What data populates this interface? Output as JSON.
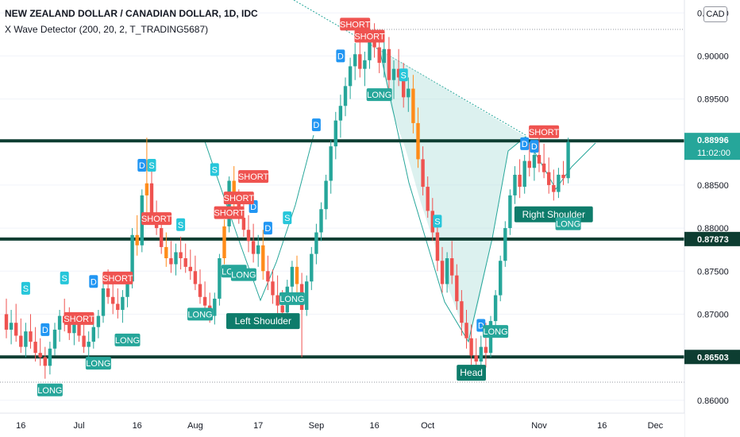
{
  "header": {
    "title": "NEW ZEALAND DOLLAR / CANADIAN DOLLAR, 1D, IDC",
    "indicator": "X Wave Detector (200, 20, 2, T_TRADING5687)",
    "currency": "CAD"
  },
  "colors": {
    "up": "#26a69a",
    "down": "#ef5350",
    "short": "#ef5350",
    "long": "#26a69a",
    "signal_d": "#2196f3",
    "signal_s": "#26c6da",
    "level_line": "#0d3d31",
    "orange": "#ff8c1a",
    "pattern_fill": "#b2dfdb"
  },
  "chart_data": {
    "type": "candlestick",
    "symbol": "NZDCAD",
    "timeframe": "1D",
    "x_ticks": [
      "16",
      "Jul",
      "16",
      "Aug",
      "17",
      "Sep",
      "16",
      "Oct",
      "Nov",
      "16",
      "Dec"
    ],
    "y_ticks": [
      "0.90500",
      "0.90000",
      "0.89500",
      "0.88500",
      "0.88000",
      "0.87500",
      "0.87000",
      "0.86000"
    ],
    "ylim": [
      0.8585,
      0.9065
    ],
    "levels": [
      {
        "label": "0.89014",
        "value": 0.89014
      },
      {
        "label": "0.87873",
        "value": 0.87873
      },
      {
        "label": "0.86503",
        "value": 0.86503
      }
    ],
    "last_price": {
      "label": "0.88996",
      "value": 0.88996,
      "countdown": "11:02:00"
    },
    "candles": [
      [
        0.87,
        0.8718,
        0.8672,
        0.8682
      ],
      [
        0.8682,
        0.8705,
        0.8665,
        0.869
      ],
      [
        0.869,
        0.8712,
        0.8668,
        0.8675
      ],
      [
        0.8675,
        0.8695,
        0.8655,
        0.8662
      ],
      [
        0.8662,
        0.869,
        0.865,
        0.868
      ],
      [
        0.868,
        0.87,
        0.866,
        0.8668
      ],
      [
        0.8668,
        0.8685,
        0.8645,
        0.8655
      ],
      [
        0.8655,
        0.8672,
        0.864,
        0.865
      ],
      [
        0.865,
        0.8662,
        0.8625,
        0.864
      ],
      [
        0.864,
        0.8668,
        0.863,
        0.866
      ],
      [
        0.866,
        0.869,
        0.8652,
        0.8682
      ],
      [
        0.8682,
        0.8705,
        0.8668,
        0.8698
      ],
      [
        0.8698,
        0.8718,
        0.868,
        0.869
      ],
      [
        0.869,
        0.8708,
        0.867,
        0.8678
      ],
      [
        0.8678,
        0.87,
        0.8664,
        0.8688
      ],
      [
        0.8688,
        0.8702,
        0.8668,
        0.8675
      ],
      [
        0.8675,
        0.869,
        0.8655,
        0.8662
      ],
      [
        0.8662,
        0.868,
        0.8648,
        0.8668
      ],
      [
        0.8668,
        0.8692,
        0.866,
        0.8685
      ],
      [
        0.8685,
        0.8705,
        0.8672,
        0.8698
      ],
      [
        0.8698,
        0.8738,
        0.869,
        0.873
      ],
      [
        0.873,
        0.8752,
        0.8712,
        0.872
      ],
      [
        0.872,
        0.8742,
        0.87,
        0.8712
      ],
      [
        0.8712,
        0.873,
        0.8695,
        0.8705
      ],
      [
        0.8705,
        0.8728,
        0.869,
        0.872
      ],
      [
        0.872,
        0.8748,
        0.8708,
        0.8738
      ],
      [
        0.8738,
        0.88,
        0.873,
        0.8792
      ],
      [
        0.8792,
        0.8815,
        0.8768,
        0.878
      ],
      [
        0.878,
        0.8845,
        0.8772,
        0.8838
      ],
      [
        0.8838,
        0.8905,
        0.8815,
        0.8852
      ],
      [
        0.8852,
        0.8868,
        0.881,
        0.8818
      ],
      [
        0.8818,
        0.8832,
        0.8792,
        0.88
      ],
      [
        0.88,
        0.8812,
        0.877,
        0.8778
      ],
      [
        0.8778,
        0.8795,
        0.8755,
        0.8765
      ],
      [
        0.8765,
        0.8785,
        0.8748,
        0.8758
      ],
      [
        0.8758,
        0.8782,
        0.8745,
        0.8772
      ],
      [
        0.8772,
        0.879,
        0.8752,
        0.8765
      ],
      [
        0.8765,
        0.8782,
        0.8748,
        0.8755
      ],
      [
        0.8755,
        0.8775,
        0.874,
        0.875
      ],
      [
        0.875,
        0.8768,
        0.8728,
        0.8735
      ],
      [
        0.8735,
        0.8752,
        0.8712,
        0.872
      ],
      [
        0.872,
        0.8738,
        0.8698,
        0.871
      ],
      [
        0.871,
        0.8725,
        0.869,
        0.8698
      ],
      [
        0.8698,
        0.8725,
        0.8688,
        0.8718
      ],
      [
        0.8718,
        0.877,
        0.871,
        0.8765
      ],
      [
        0.8765,
        0.881,
        0.8758,
        0.8802
      ],
      [
        0.8802,
        0.886,
        0.8795,
        0.8855
      ],
      [
        0.8855,
        0.8872,
        0.8825,
        0.8832
      ],
      [
        0.8832,
        0.8845,
        0.8805,
        0.8812
      ],
      [
        0.8812,
        0.8828,
        0.879,
        0.8798
      ],
      [
        0.8798,
        0.8815,
        0.8772,
        0.8785
      ],
      [
        0.8785,
        0.8805,
        0.876,
        0.877
      ],
      [
        0.877,
        0.8792,
        0.8755,
        0.878
      ],
      [
        0.878,
        0.8798,
        0.874,
        0.875
      ],
      [
        0.875,
        0.8768,
        0.8728,
        0.8738
      ],
      [
        0.8738,
        0.8752,
        0.8712,
        0.8722
      ],
      [
        0.8722,
        0.8745,
        0.87,
        0.871
      ],
      [
        0.871,
        0.8728,
        0.869,
        0.8702
      ],
      [
        0.8702,
        0.874,
        0.869,
        0.8732
      ],
      [
        0.8732,
        0.8762,
        0.8718,
        0.8755
      ],
      [
        0.8755,
        0.8768,
        0.872,
        0.8735
      ],
      [
        0.8735,
        0.8748,
        0.865,
        0.8705
      ],
      [
        0.8705,
        0.8745,
        0.8698,
        0.8738
      ],
      [
        0.8738,
        0.8778,
        0.8728,
        0.877
      ],
      [
        0.877,
        0.8805,
        0.8758,
        0.8795
      ],
      [
        0.8795,
        0.883,
        0.8785,
        0.8822
      ],
      [
        0.8822,
        0.8862,
        0.881,
        0.8855
      ],
      [
        0.8855,
        0.8902,
        0.884,
        0.8895
      ],
      [
        0.8895,
        0.8935,
        0.888,
        0.8925
      ],
      [
        0.8925,
        0.8955,
        0.8905,
        0.8942
      ],
      [
        0.8942,
        0.8975,
        0.893,
        0.8965
      ],
      [
        0.8965,
        0.8998,
        0.895,
        0.8988
      ],
      [
        0.8988,
        0.9015,
        0.8972,
        0.9002
      ],
      [
        0.9002,
        0.902,
        0.8975,
        0.8985
      ],
      [
        0.8985,
        0.9005,
        0.8965,
        0.8995
      ],
      [
        0.8995,
        0.903,
        0.8985,
        0.9022
      ],
      [
        0.9022,
        0.9038,
        0.8998,
        0.901
      ],
      [
        0.901,
        0.9025,
        0.898,
        0.8992
      ],
      [
        0.8992,
        0.9018,
        0.8975,
        0.9008
      ],
      [
        0.9008,
        0.9022,
        0.896,
        0.8972
      ],
      [
        0.8972,
        0.8995,
        0.895,
        0.8985
      ],
      [
        0.8985,
        0.9008,
        0.8965,
        0.8975
      ],
      [
        0.8975,
        0.8992,
        0.894,
        0.8952
      ],
      [
        0.8952,
        0.8975,
        0.8935,
        0.8962
      ],
      [
        0.8962,
        0.8978,
        0.891,
        0.8922
      ],
      [
        0.8922,
        0.894,
        0.887,
        0.888
      ],
      [
        0.888,
        0.8895,
        0.8838,
        0.8848
      ],
      [
        0.8848,
        0.886,
        0.8812,
        0.882
      ],
      [
        0.882,
        0.8835,
        0.8785,
        0.8795
      ],
      [
        0.8795,
        0.881,
        0.875,
        0.8762
      ],
      [
        0.8762,
        0.8778,
        0.8725,
        0.8735
      ],
      [
        0.8735,
        0.8772,
        0.8725,
        0.8765
      ],
      [
        0.8765,
        0.8785,
        0.8735,
        0.8745
      ],
      [
        0.8745,
        0.8758,
        0.8705,
        0.8715
      ],
      [
        0.8715,
        0.8728,
        0.8675,
        0.869
      ],
      [
        0.869,
        0.8705,
        0.866,
        0.8672
      ],
      [
        0.8672,
        0.8688,
        0.864,
        0.8652
      ],
      [
        0.8652,
        0.8672,
        0.8635,
        0.8645
      ],
      [
        0.8645,
        0.8675,
        0.8625,
        0.8662
      ],
      [
        0.8662,
        0.869,
        0.8638,
        0.8655
      ],
      [
        0.8655,
        0.8698,
        0.865,
        0.8692
      ],
      [
        0.8692,
        0.8728,
        0.8685,
        0.8722
      ],
      [
        0.8722,
        0.8768,
        0.8715,
        0.8762
      ],
      [
        0.8762,
        0.8808,
        0.8755,
        0.88
      ],
      [
        0.88,
        0.8845,
        0.8792,
        0.8838
      ],
      [
        0.8838,
        0.8872,
        0.8828,
        0.8862
      ],
      [
        0.8862,
        0.888,
        0.8835,
        0.8848
      ],
      [
        0.8848,
        0.8885,
        0.884,
        0.8878
      ],
      [
        0.8878,
        0.8898,
        0.886,
        0.887
      ],
      [
        0.887,
        0.8892,
        0.8855,
        0.8885
      ],
      [
        0.8885,
        0.8905,
        0.8865,
        0.8875
      ],
      [
        0.8875,
        0.8898,
        0.8858,
        0.8865
      ],
      [
        0.8865,
        0.8882,
        0.884,
        0.885
      ],
      [
        0.885,
        0.8868,
        0.8832,
        0.8842
      ],
      [
        0.8842,
        0.887,
        0.8835,
        0.8862
      ],
      [
        0.8862,
        0.8878,
        0.885,
        0.8858
      ],
      [
        0.8858,
        0.8905,
        0.8852,
        0.89
      ]
    ],
    "signals": [
      {
        "text": "SHORT",
        "kind": "short",
        "index": 72,
        "price": 0.9037
      },
      {
        "text": "SHORT",
        "kind": "short",
        "index": 75,
        "price": 0.9023
      },
      {
        "text": "D",
        "kind": "d",
        "index": 69,
        "price": 0.9
      },
      {
        "text": "D",
        "kind": "d",
        "index": 64,
        "price": 0.892
      },
      {
        "text": "S",
        "kind": "s",
        "index": 82,
        "price": 0.8978
      },
      {
        "text": "LONG",
        "kind": "long",
        "index": 77,
        "price": 0.8955
      },
      {
        "text": "SHORT",
        "kind": "short",
        "index": 111,
        "price": 0.8912
      },
      {
        "text": "D",
        "kind": "d",
        "index": 107,
        "price": 0.8898
      },
      {
        "text": "D",
        "kind": "d",
        "index": 109,
        "price": 0.8895
      },
      {
        "text": "Right Shoulder",
        "kind": "pattern",
        "index": 113,
        "price": 0.8816
      },
      {
        "text": "LONG",
        "kind": "long",
        "index": 116,
        "price": 0.8805
      },
      {
        "text": "S",
        "kind": "s",
        "index": 89,
        "price": 0.8808
      },
      {
        "text": "Head",
        "kind": "pattern",
        "index": 96,
        "price": 0.8632
      },
      {
        "text": "D",
        "kind": "d",
        "index": 98,
        "price": 0.8687
      },
      {
        "text": "LONG",
        "kind": "long",
        "index": 101,
        "price": 0.868
      },
      {
        "text": "Left Shoulder",
        "kind": "pattern",
        "index": 53,
        "price": 0.8692
      },
      {
        "text": "LONG",
        "kind": "long",
        "index": 59,
        "price": 0.8718
      },
      {
        "text": "D",
        "kind": "d",
        "index": 54,
        "price": 0.88
      },
      {
        "text": "S",
        "kind": "s",
        "index": 58,
        "price": 0.8812
      },
      {
        "text": "D",
        "kind": "d",
        "index": 51,
        "price": 0.8825
      },
      {
        "text": "SHORT",
        "kind": "short",
        "index": 51,
        "price": 0.886
      },
      {
        "text": "SHORT",
        "kind": "short",
        "index": 48,
        "price": 0.8835
      },
      {
        "text": "SHORT",
        "kind": "short",
        "index": 46,
        "price": 0.8818
      },
      {
        "text": "S",
        "kind": "s",
        "index": 43,
        "price": 0.8868
      },
      {
        "text": "LONG",
        "kind": "long",
        "index": 47,
        "price": 0.875
      },
      {
        "text": "LONG",
        "kind": "long",
        "index": 49,
        "price": 0.8746
      },
      {
        "text": "LONG",
        "kind": "long",
        "index": 40,
        "price": 0.87
      },
      {
        "text": "D",
        "kind": "d",
        "index": 28,
        "price": 0.8873
      },
      {
        "text": "S",
        "kind": "s",
        "index": 30,
        "price": 0.8873
      },
      {
        "text": "SHORT",
        "kind": "short",
        "index": 31,
        "price": 0.8811
      },
      {
        "text": "S",
        "kind": "s",
        "index": 36,
        "price": 0.8804
      },
      {
        "text": "SHORT",
        "kind": "short",
        "index": 23,
        "price": 0.8742
      },
      {
        "text": "LONG",
        "kind": "long",
        "index": 25,
        "price": 0.867
      },
      {
        "text": "D",
        "kind": "d",
        "index": 18,
        "price": 0.8738
      },
      {
        "text": "S",
        "kind": "s",
        "index": 12,
        "price": 0.8742
      },
      {
        "text": "SHORT",
        "kind": "short",
        "index": 15,
        "price": 0.8695
      },
      {
        "text": "D",
        "kind": "d",
        "index": 8,
        "price": 0.8682
      },
      {
        "text": "LONG",
        "kind": "long",
        "index": 19,
        "price": 0.8643
      },
      {
        "text": "S",
        "kind": "s",
        "index": 4,
        "price": 0.873
      },
      {
        "text": "LONG",
        "kind": "long",
        "index": 9,
        "price": 0.8612
      }
    ]
  }
}
